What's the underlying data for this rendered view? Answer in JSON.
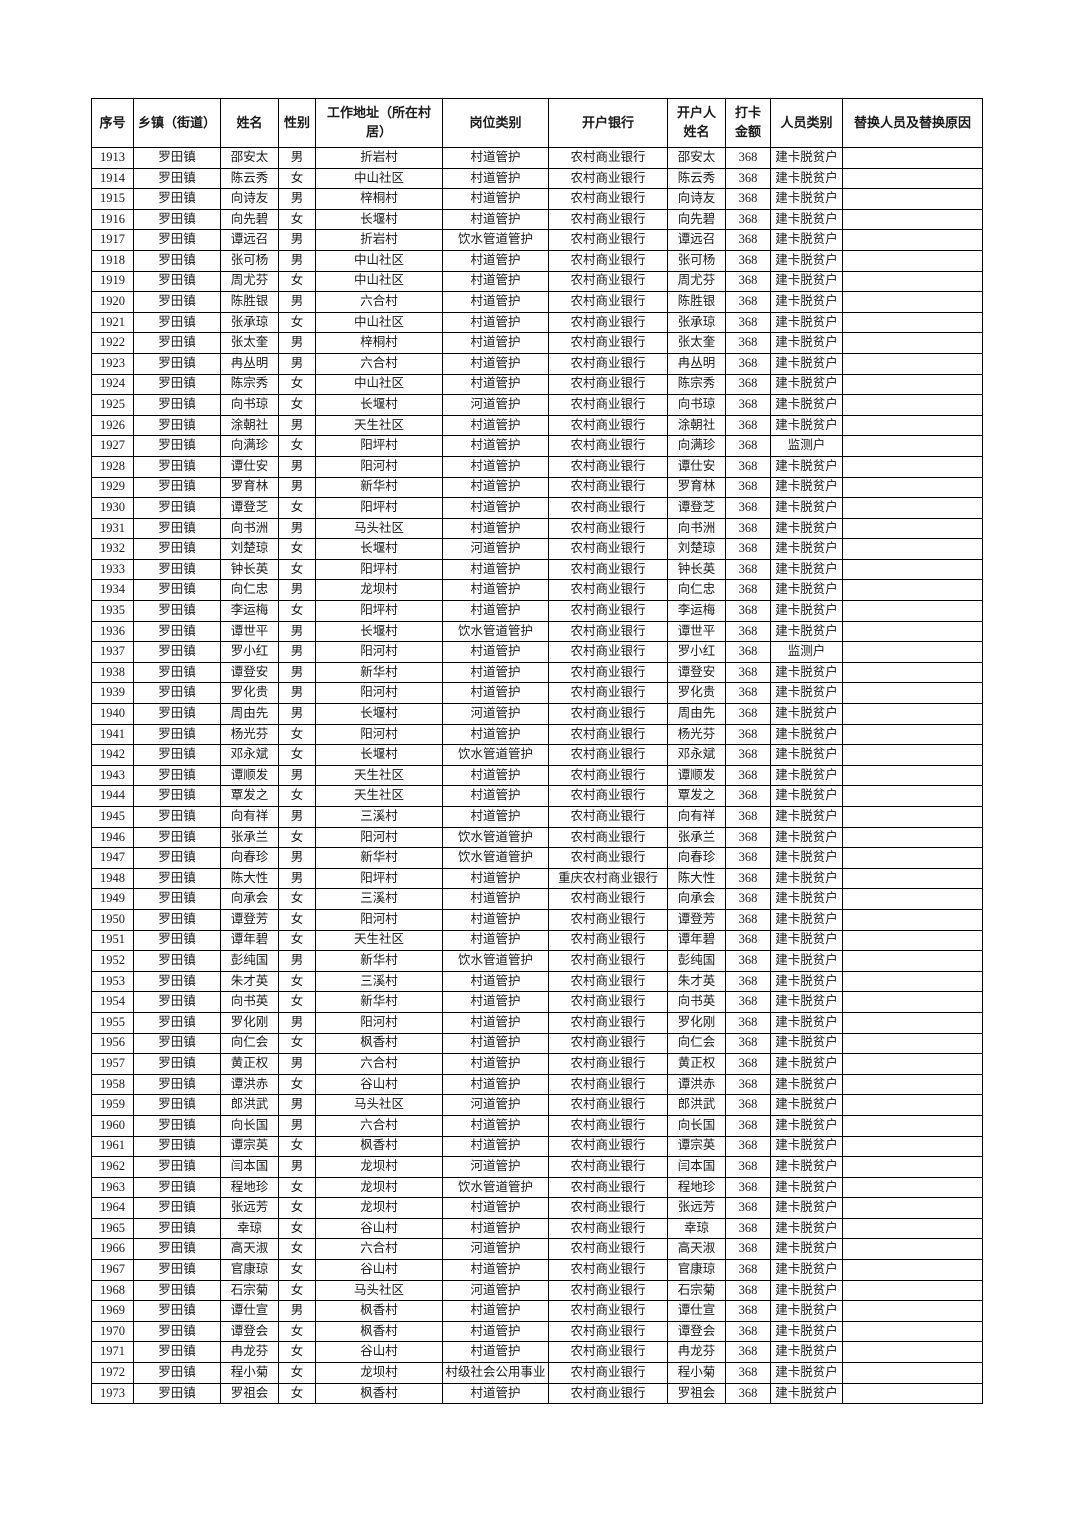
{
  "page": {
    "background_color": "#ffffff",
    "text_color": "#1a1a1a",
    "border_color": "#000000"
  },
  "table": {
    "columns": [
      {
        "key": "index",
        "label": "序号"
      },
      {
        "key": "township",
        "label": "乡镇（街道）"
      },
      {
        "key": "name",
        "label": "姓名"
      },
      {
        "key": "gender",
        "label": "性别"
      },
      {
        "key": "address",
        "label": "工作地址（所在村居）"
      },
      {
        "key": "job",
        "label": "岗位类别"
      },
      {
        "key": "bank",
        "label": "开户银行"
      },
      {
        "key": "account_name",
        "label": "开户人姓名"
      },
      {
        "key": "amount",
        "label": "打卡金额"
      },
      {
        "key": "category",
        "label": "人员类别"
      },
      {
        "key": "replacement",
        "label": "替换人员及替换原因"
      }
    ],
    "rows": [
      [
        "1913",
        "罗田镇",
        "邵安太",
        "男",
        "折岩村",
        "村道管护",
        "农村商业银行",
        "邵安太",
        "368",
        "建卡脱贫户",
        ""
      ],
      [
        "1914",
        "罗田镇",
        "陈云秀",
        "女",
        "中山社区",
        "村道管护",
        "农村商业银行",
        "陈云秀",
        "368",
        "建卡脱贫户",
        ""
      ],
      [
        "1915",
        "罗田镇",
        "向诗友",
        "男",
        "梓桐村",
        "村道管护",
        "农村商业银行",
        "向诗友",
        "368",
        "建卡脱贫户",
        ""
      ],
      [
        "1916",
        "罗田镇",
        "向先碧",
        "女",
        "长堰村",
        "村道管护",
        "农村商业银行",
        "向先碧",
        "368",
        "建卡脱贫户",
        ""
      ],
      [
        "1917",
        "罗田镇",
        "谭远召",
        "男",
        "折岩村",
        "饮水管道管护",
        "农村商业银行",
        "谭远召",
        "368",
        "建卡脱贫户",
        ""
      ],
      [
        "1918",
        "罗田镇",
        "张可杨",
        "男",
        "中山社区",
        "村道管护",
        "农村商业银行",
        "张可杨",
        "368",
        "建卡脱贫户",
        ""
      ],
      [
        "1919",
        "罗田镇",
        "周尤芬",
        "女",
        "中山社区",
        "村道管护",
        "农村商业银行",
        "周尤芬",
        "368",
        "建卡脱贫户",
        ""
      ],
      [
        "1920",
        "罗田镇",
        "陈胜银",
        "男",
        "六合村",
        "村道管护",
        "农村商业银行",
        "陈胜银",
        "368",
        "建卡脱贫户",
        ""
      ],
      [
        "1921",
        "罗田镇",
        "张承琼",
        "女",
        "中山社区",
        "村道管护",
        "农村商业银行",
        "张承琼",
        "368",
        "建卡脱贫户",
        ""
      ],
      [
        "1922",
        "罗田镇",
        "张太奎",
        "男",
        "梓桐村",
        "村道管护",
        "农村商业银行",
        "张太奎",
        "368",
        "建卡脱贫户",
        ""
      ],
      [
        "1923",
        "罗田镇",
        "冉丛明",
        "男",
        "六合村",
        "村道管护",
        "农村商业银行",
        "冉丛明",
        "368",
        "建卡脱贫户",
        ""
      ],
      [
        "1924",
        "罗田镇",
        "陈宗秀",
        "女",
        "中山社区",
        "村道管护",
        "农村商业银行",
        "陈宗秀",
        "368",
        "建卡脱贫户",
        ""
      ],
      [
        "1925",
        "罗田镇",
        "向书琼",
        "女",
        "长堰村",
        "河道管护",
        "农村商业银行",
        "向书琼",
        "368",
        "建卡脱贫户",
        ""
      ],
      [
        "1926",
        "罗田镇",
        "涂朝社",
        "男",
        "天生社区",
        "村道管护",
        "农村商业银行",
        "涂朝社",
        "368",
        "建卡脱贫户",
        ""
      ],
      [
        "1927",
        "罗田镇",
        "向满珍",
        "女",
        "阳坪村",
        "村道管护",
        "农村商业银行",
        "向满珍",
        "368",
        "监测户",
        ""
      ],
      [
        "1928",
        "罗田镇",
        "谭仕安",
        "男",
        "阳河村",
        "村道管护",
        "农村商业银行",
        "谭仕安",
        "368",
        "建卡脱贫户",
        ""
      ],
      [
        "1929",
        "罗田镇",
        "罗育林",
        "男",
        "新华村",
        "村道管护",
        "农村商业银行",
        "罗育林",
        "368",
        "建卡脱贫户",
        ""
      ],
      [
        "1930",
        "罗田镇",
        "谭登芝",
        "女",
        "阳坪村",
        "村道管护",
        "农村商业银行",
        "谭登芝",
        "368",
        "建卡脱贫户",
        ""
      ],
      [
        "1931",
        "罗田镇",
        "向书洲",
        "男",
        "马头社区",
        "村道管护",
        "农村商业银行",
        "向书洲",
        "368",
        "建卡脱贫户",
        ""
      ],
      [
        "1932",
        "罗田镇",
        "刘楚琼",
        "女",
        "长堰村",
        "河道管护",
        "农村商业银行",
        "刘楚琼",
        "368",
        "建卡脱贫户",
        ""
      ],
      [
        "1933",
        "罗田镇",
        "钟长英",
        "女",
        "阳坪村",
        "村道管护",
        "农村商业银行",
        "钟长英",
        "368",
        "建卡脱贫户",
        ""
      ],
      [
        "1934",
        "罗田镇",
        "向仁忠",
        "男",
        "龙坝村",
        "村道管护",
        "农村商业银行",
        "向仁忠",
        "368",
        "建卡脱贫户",
        ""
      ],
      [
        "1935",
        "罗田镇",
        "李运梅",
        "女",
        "阳坪村",
        "村道管护",
        "农村商业银行",
        "李运梅",
        "368",
        "建卡脱贫户",
        ""
      ],
      [
        "1936",
        "罗田镇",
        "谭世平",
        "男",
        "长堰村",
        "饮水管道管护",
        "农村商业银行",
        "谭世平",
        "368",
        "建卡脱贫户",
        ""
      ],
      [
        "1937",
        "罗田镇",
        "罗小红",
        "男",
        "阳河村",
        "村道管护",
        "农村商业银行",
        "罗小红",
        "368",
        "监测户",
        ""
      ],
      [
        "1938",
        "罗田镇",
        "谭登安",
        "男",
        "新华村",
        "村道管护",
        "农村商业银行",
        "谭登安",
        "368",
        "建卡脱贫户",
        ""
      ],
      [
        "1939",
        "罗田镇",
        "罗化贵",
        "男",
        "阳河村",
        "村道管护",
        "农村商业银行",
        "罗化贵",
        "368",
        "建卡脱贫户",
        ""
      ],
      [
        "1940",
        "罗田镇",
        "周由先",
        "男",
        "长堰村",
        "河道管护",
        "农村商业银行",
        "周由先",
        "368",
        "建卡脱贫户",
        ""
      ],
      [
        "1941",
        "罗田镇",
        "杨光芬",
        "女",
        "阳河村",
        "村道管护",
        "农村商业银行",
        "杨光芬",
        "368",
        "建卡脱贫户",
        ""
      ],
      [
        "1942",
        "罗田镇",
        "邓永斌",
        "女",
        "长堰村",
        "饮水管道管护",
        "农村商业银行",
        "邓永斌",
        "368",
        "建卡脱贫户",
        ""
      ],
      [
        "1943",
        "罗田镇",
        "谭顺发",
        "男",
        "天生社区",
        "村道管护",
        "农村商业银行",
        "谭顺发",
        "368",
        "建卡脱贫户",
        ""
      ],
      [
        "1944",
        "罗田镇",
        "覃发之",
        "女",
        "天生社区",
        "村道管护",
        "农村商业银行",
        "覃发之",
        "368",
        "建卡脱贫户",
        ""
      ],
      [
        "1945",
        "罗田镇",
        "向有祥",
        "男",
        "三溪村",
        "村道管护",
        "农村商业银行",
        "向有祥",
        "368",
        "建卡脱贫户",
        ""
      ],
      [
        "1946",
        "罗田镇",
        "张承兰",
        "女",
        "阳河村",
        "饮水管道管护",
        "农村商业银行",
        "张承兰",
        "368",
        "建卡脱贫户",
        ""
      ],
      [
        "1947",
        "罗田镇",
        "向春珍",
        "男",
        "新华村",
        "饮水管道管护",
        "农村商业银行",
        "向春珍",
        "368",
        "建卡脱贫户",
        ""
      ],
      [
        "1948",
        "罗田镇",
        "陈大性",
        "男",
        "阳坪村",
        "村道管护",
        "重庆农村商业银行",
        "陈大性",
        "368",
        "建卡脱贫户",
        ""
      ],
      [
        "1949",
        "罗田镇",
        "向承会",
        "女",
        "三溪村",
        "村道管护",
        "农村商业银行",
        "向承会",
        "368",
        "建卡脱贫户",
        ""
      ],
      [
        "1950",
        "罗田镇",
        "谭登芳",
        "女",
        "阳河村",
        "村道管护",
        "农村商业银行",
        "谭登芳",
        "368",
        "建卡脱贫户",
        ""
      ],
      [
        "1951",
        "罗田镇",
        "谭年碧",
        "女",
        "天生社区",
        "村道管护",
        "农村商业银行",
        "谭年碧",
        "368",
        "建卡脱贫户",
        ""
      ],
      [
        "1952",
        "罗田镇",
        "彭纯国",
        "男",
        "新华村",
        "饮水管道管护",
        "农村商业银行",
        "彭纯国",
        "368",
        "建卡脱贫户",
        ""
      ],
      [
        "1953",
        "罗田镇",
        "朱才英",
        "女",
        "三溪村",
        "村道管护",
        "农村商业银行",
        "朱才英",
        "368",
        "建卡脱贫户",
        ""
      ],
      [
        "1954",
        "罗田镇",
        "向书英",
        "女",
        "新华村",
        "村道管护",
        "农村商业银行",
        "向书英",
        "368",
        "建卡脱贫户",
        ""
      ],
      [
        "1955",
        "罗田镇",
        "罗化刚",
        "男",
        "阳河村",
        "村道管护",
        "农村商业银行",
        "罗化刚",
        "368",
        "建卡脱贫户",
        ""
      ],
      [
        "1956",
        "罗田镇",
        "向仁会",
        "女",
        "枫香村",
        "村道管护",
        "农村商业银行",
        "向仁会",
        "368",
        "建卡脱贫户",
        ""
      ],
      [
        "1957",
        "罗田镇",
        "黄正权",
        "男",
        "六合村",
        "村道管护",
        "农村商业银行",
        "黄正权",
        "368",
        "建卡脱贫户",
        ""
      ],
      [
        "1958",
        "罗田镇",
        "谭洪赤",
        "女",
        "谷山村",
        "村道管护",
        "农村商业银行",
        "谭洪赤",
        "368",
        "建卡脱贫户",
        ""
      ],
      [
        "1959",
        "罗田镇",
        "郎洪武",
        "男",
        "马头社区",
        "河道管护",
        "农村商业银行",
        "郎洪武",
        "368",
        "建卡脱贫户",
        ""
      ],
      [
        "1960",
        "罗田镇",
        "向长国",
        "男",
        "六合村",
        "村道管护",
        "农村商业银行",
        "向长国",
        "368",
        "建卡脱贫户",
        ""
      ],
      [
        "1961",
        "罗田镇",
        "谭宗英",
        "女",
        "枫香村",
        "村道管护",
        "农村商业银行",
        "谭宗英",
        "368",
        "建卡脱贫户",
        ""
      ],
      [
        "1962",
        "罗田镇",
        "闫本国",
        "男",
        "龙坝村",
        "河道管护",
        "农村商业银行",
        "闫本国",
        "368",
        "建卡脱贫户",
        ""
      ],
      [
        "1963",
        "罗田镇",
        "程地珍",
        "女",
        "龙坝村",
        "饮水管道管护",
        "农村商业银行",
        "程地珍",
        "368",
        "建卡脱贫户",
        ""
      ],
      [
        "1964",
        "罗田镇",
        "张远芳",
        "女",
        "龙坝村",
        "村道管护",
        "农村商业银行",
        "张远芳",
        "368",
        "建卡脱贫户",
        ""
      ],
      [
        "1965",
        "罗田镇",
        "幸琼",
        "女",
        "谷山村",
        "村道管护",
        "农村商业银行",
        "幸琼",
        "368",
        "建卡脱贫户",
        ""
      ],
      [
        "1966",
        "罗田镇",
        "高天淑",
        "女",
        "六合村",
        "河道管护",
        "农村商业银行",
        "高天淑",
        "368",
        "建卡脱贫户",
        ""
      ],
      [
        "1967",
        "罗田镇",
        "官康琼",
        "女",
        "谷山村",
        "村道管护",
        "农村商业银行",
        "官康琼",
        "368",
        "建卡脱贫户",
        ""
      ],
      [
        "1968",
        "罗田镇",
        "石宗菊",
        "女",
        "马头社区",
        "河道管护",
        "农村商业银行",
        "石宗菊",
        "368",
        "建卡脱贫户",
        ""
      ],
      [
        "1969",
        "罗田镇",
        "谭仕宣",
        "男",
        "枫香村",
        "村道管护",
        "农村商业银行",
        "谭仕宣",
        "368",
        "建卡脱贫户",
        ""
      ],
      [
        "1970",
        "罗田镇",
        "谭登会",
        "女",
        "枫香村",
        "村道管护",
        "农村商业银行",
        "谭登会",
        "368",
        "建卡脱贫户",
        ""
      ],
      [
        "1971",
        "罗田镇",
        "冉龙芬",
        "女",
        "谷山村",
        "村道管护",
        "农村商业银行",
        "冉龙芬",
        "368",
        "建卡脱贫户",
        ""
      ],
      [
        "1972",
        "罗田镇",
        "程小菊",
        "女",
        "龙坝村",
        "村级社会公用事业",
        "农村商业银行",
        "程小菊",
        "368",
        "建卡脱贫户",
        ""
      ],
      [
        "1973",
        "罗田镇",
        "罗祖会",
        "女",
        "枫香村",
        "村道管护",
        "农村商业银行",
        "罗祖会",
        "368",
        "建卡脱贫户",
        ""
      ]
    ]
  }
}
